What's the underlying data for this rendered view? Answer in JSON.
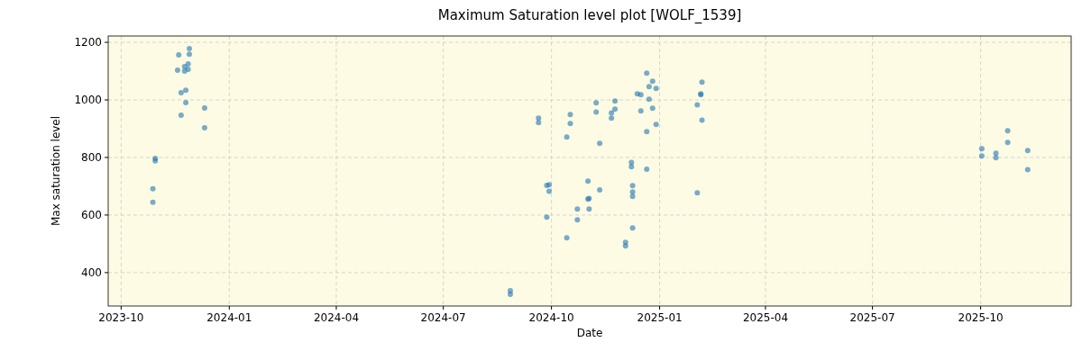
{
  "chart_data": {
    "type": "scatter",
    "title": "Maximum Saturation level plot [WOLF_1539]",
    "xlabel": "Date",
    "ylabel": "Max saturation level",
    "xlim": [
      "2023-09-20",
      "2025-12-17"
    ],
    "ylim": [
      284,
      1222
    ],
    "xticks": [
      {
        "value": "2023-10-01",
        "label": "2023-10"
      },
      {
        "value": "2024-01-01",
        "label": "2024-01"
      },
      {
        "value": "2024-04-01",
        "label": "2024-04"
      },
      {
        "value": "2024-07-01",
        "label": "2024-07"
      },
      {
        "value": "2024-10-01",
        "label": "2024-10"
      },
      {
        "value": "2025-01-01",
        "label": "2025-01"
      },
      {
        "value": "2025-04-01",
        "label": "2025-04"
      },
      {
        "value": "2025-07-01",
        "label": "2025-07"
      },
      {
        "value": "2025-10-01",
        "label": "2025-10"
      }
    ],
    "yticks": [
      400,
      600,
      800,
      1000,
      1200
    ],
    "grid": true,
    "marker": "circle",
    "series": [
      {
        "color": "#1f77b4",
        "x": [
          "2023-11-28",
          "2023-11-28",
          "2023-11-27",
          "2023-11-24",
          "2023-11-27",
          "2023-11-18",
          "2023-11-24",
          "2023-11-19",
          "2023-11-25",
          "2023-11-21",
          "2023-11-25",
          "2023-12-11",
          "2023-11-21",
          "2023-12-11",
          "2023-10-30",
          "2023-10-30",
          "2023-10-28",
          "2023-10-28",
          "2024-08-27",
          "2024-08-27",
          "2024-09-20",
          "2024-09-20",
          "2024-09-27",
          "2024-09-29",
          "2024-09-29",
          "2024-09-27",
          "2024-10-17",
          "2024-10-17",
          "2024-10-14",
          "2024-10-14",
          "2024-10-23",
          "2024-10-23",
          "2024-11-01",
          "2024-11-01",
          "2024-11-02",
          "2024-11-02",
          "2024-11-11",
          "2024-11-11",
          "2024-11-08",
          "2024-11-08",
          "2024-11-24",
          "2024-11-24",
          "2024-11-21",
          "2024-11-21",
          "2024-12-21",
          "2024-12-26",
          "2024-12-23",
          "2024-12-29",
          "2024-12-13",
          "2024-12-16",
          "2024-12-23",
          "2024-12-26",
          "2024-12-16",
          "2024-12-29",
          "2024-12-21",
          "2024-12-08",
          "2024-12-08",
          "2024-12-21",
          "2024-12-09",
          "2024-12-09",
          "2024-12-09",
          "2024-12-09",
          "2024-12-03",
          "2024-12-03",
          "2025-02-06",
          "2025-02-05",
          "2025-02-05",
          "2025-02-02",
          "2025-02-06",
          "2025-02-02",
          "2025-10-02",
          "2025-10-02",
          "2025-10-14",
          "2025-10-14",
          "2025-10-24",
          "2025-10-24",
          "2025-11-10",
          "2025-11-10"
        ],
        "values": [
          1178,
          1159,
          1125,
          1116,
          1106,
          1103,
          1100,
          1156,
          1034,
          1025,
          991,
          972,
          947,
          903,
          797,
          788,
          691,
          644,
          337,
          325,
          937,
          921,
          703,
          705,
          683,
          593,
          949,
          918,
          871,
          521,
          621,
          583,
          718,
          655,
          658,
          621,
          687,
          849,
          990,
          958,
          996,
          968,
          955,
          937,
          1093,
          1065,
          1046,
          1040,
          1021,
          1018,
          1002,
          971,
          962,
          915,
          890,
          783,
          768,
          759,
          702,
          680,
          665,
          555,
          505,
          493,
          1062,
          1021,
          1018,
          983,
          930,
          677,
          830,
          805,
          815,
          799,
          893,
          852,
          824,
          758
        ]
      }
    ]
  }
}
